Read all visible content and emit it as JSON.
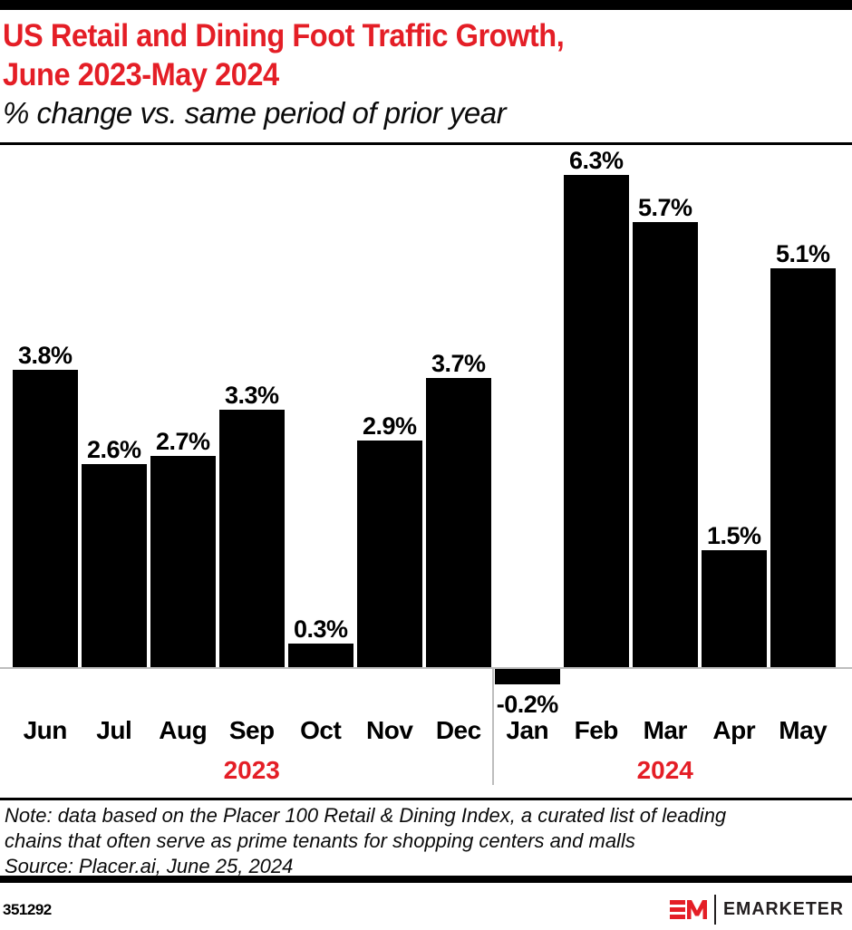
{
  "header": {
    "title_line1": "US Retail and Dining Foot Traffic Growth,",
    "title_line2": "June 2023-May 2024",
    "subtitle": "% change vs. same period of prior year"
  },
  "chart_data": {
    "type": "bar",
    "categories": [
      "Jun",
      "Jul",
      "Aug",
      "Sep",
      "Oct",
      "Nov",
      "Dec",
      "Jan",
      "Feb",
      "Mar",
      "Apr",
      "May"
    ],
    "values": [
      3.8,
      2.6,
      2.7,
      3.3,
      0.3,
      2.9,
      3.7,
      -0.2,
      6.3,
      5.7,
      1.5,
      5.1
    ],
    "value_labels": [
      "3.8%",
      "2.6%",
      "2.7%",
      "3.3%",
      "0.3%",
      "2.9%",
      "3.7%",
      "-0.2%",
      "6.3%",
      "5.7%",
      "1.5%",
      "5.1%"
    ],
    "year_groups": [
      {
        "label": "2023",
        "start_index": 0,
        "end_index": 6
      },
      {
        "label": "2024",
        "start_index": 7,
        "end_index": 11
      }
    ],
    "title": "US Retail and Dining Foot Traffic Growth, June 2023-May 2024",
    "xlabel": "",
    "ylabel": "% change vs. same period of prior year",
    "ylim": [
      -0.5,
      6.6
    ],
    "grid": false,
    "legend": "none",
    "bar_color": "#000000",
    "year_label_color": "#e41e26"
  },
  "footnote": {
    "note_line1": "Note: data based on the Placer 100 Retail & Dining Index, a curated list of leading",
    "note_line2": "chains that often serve as prime tenants for shopping centers and malls",
    "source": "Source: Placer.ai, June 25, 2024"
  },
  "footer": {
    "chart_id": "351292",
    "brand": "EMARKETER"
  },
  "colors": {
    "accent_red": "#e41e26",
    "bar": "#000000",
    "axis_gray": "#bdbdbd"
  }
}
